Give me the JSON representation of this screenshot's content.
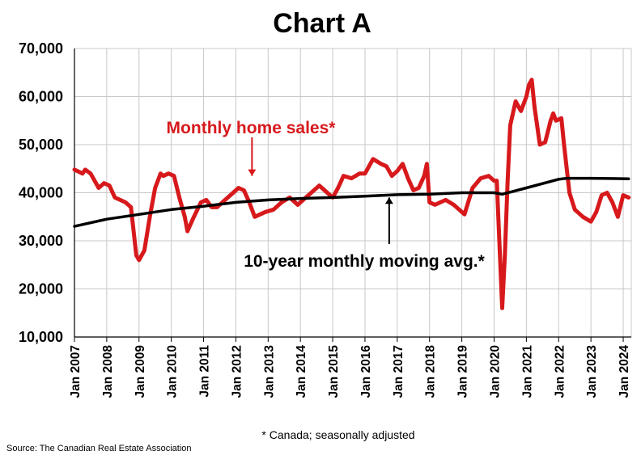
{
  "chart_data": {
    "type": "line",
    "title": "Chart A",
    "xlabel": "",
    "ylabel": "",
    "ylim": [
      10000,
      70000
    ],
    "y_ticks": [
      "10,000",
      "20,000",
      "30,000",
      "40,000",
      "50,000",
      "60,000",
      "70,000"
    ],
    "y_tick_values": [
      10000,
      20000,
      30000,
      40000,
      50000,
      60000,
      70000
    ],
    "x_ticks": [
      "Jan 2007",
      "Jan 2008",
      "Jan 2009",
      "Jan 2010",
      "Jan 2011",
      "Jan 2012",
      "Jan 2013",
      "Jan 2014",
      "Jan 2015",
      "Jan 2016",
      "Jan 2017",
      "Jan 2018",
      "Jan 2019",
      "Jan 2020",
      "Jan 2021",
      "Jan 2022",
      "Jan 2023",
      "Jan 2024"
    ],
    "xlim": [
      "2007-01",
      "2024-04"
    ],
    "grid": "vertical and horizontal",
    "series": [
      {
        "name": "Monthly home sales*",
        "color": "#d7191c",
        "points": [
          [
            "2007-01",
            44800
          ],
          [
            "2007-04",
            44000
          ],
          [
            "2007-05",
            44800
          ],
          [
            "2007-07",
            44000
          ],
          [
            "2007-10",
            41000
          ],
          [
            "2007-12",
            42000
          ],
          [
            "2008-02",
            41500
          ],
          [
            "2008-04",
            39000
          ],
          [
            "2008-08",
            38000
          ],
          [
            "2008-10",
            37000
          ],
          [
            "2008-11",
            32000
          ],
          [
            "2008-12",
            27000
          ],
          [
            "2009-01",
            26000
          ],
          [
            "2009-03",
            28000
          ],
          [
            "2009-05",
            35000
          ],
          [
            "2009-07",
            41000
          ],
          [
            "2009-09",
            44000
          ],
          [
            "2009-10",
            43500
          ],
          [
            "2009-12",
            44000
          ],
          [
            "2010-02",
            43500
          ],
          [
            "2010-04",
            39000
          ],
          [
            "2010-06",
            35000
          ],
          [
            "2010-07",
            32000
          ],
          [
            "2010-09",
            34500
          ],
          [
            "2010-12",
            38000
          ],
          [
            "2011-02",
            38500
          ],
          [
            "2011-04",
            37000
          ],
          [
            "2011-06",
            37000
          ],
          [
            "2011-09",
            38500
          ],
          [
            "2011-12",
            40000
          ],
          [
            "2012-02",
            41000
          ],
          [
            "2012-04",
            40500
          ],
          [
            "2012-06",
            38000
          ],
          [
            "2012-08",
            35000
          ],
          [
            "2012-10",
            35500
          ],
          [
            "2012-12",
            36000
          ],
          [
            "2013-03",
            36500
          ],
          [
            "2013-06",
            38000
          ],
          [
            "2013-09",
            39000
          ],
          [
            "2013-12",
            37500
          ],
          [
            "2014-02",
            38500
          ],
          [
            "2014-05",
            40000
          ],
          [
            "2014-08",
            41500
          ],
          [
            "2014-11",
            40000
          ],
          [
            "2015-01",
            39000
          ],
          [
            "2015-03",
            41000
          ],
          [
            "2015-05",
            43500
          ],
          [
            "2015-08",
            43000
          ],
          [
            "2015-11",
            44000
          ],
          [
            "2016-01",
            44000
          ],
          [
            "2016-04",
            47000
          ],
          [
            "2016-07",
            46000
          ],
          [
            "2016-09",
            45500
          ],
          [
            "2016-11",
            43500
          ],
          [
            "2017-01",
            44500
          ],
          [
            "2017-03",
            46000
          ],
          [
            "2017-05",
            43000
          ],
          [
            "2017-07",
            40500
          ],
          [
            "2017-09",
            41000
          ],
          [
            "2017-11",
            43500
          ],
          [
            "2017-12",
            46000
          ],
          [
            "2018-01",
            38000
          ],
          [
            "2018-03",
            37500
          ],
          [
            "2018-05",
            38000
          ],
          [
            "2018-07",
            38500
          ],
          [
            "2018-10",
            37500
          ],
          [
            "2019-01",
            36000
          ],
          [
            "2019-02",
            35500
          ],
          [
            "2019-05",
            41000
          ],
          [
            "2019-08",
            43000
          ],
          [
            "2019-11",
            43500
          ],
          [
            "2020-01",
            42500
          ],
          [
            "2020-02",
            42500
          ],
          [
            "2020-04",
            16000
          ],
          [
            "2020-05",
            27000
          ],
          [
            "2020-06",
            42000
          ],
          [
            "2020-07",
            54000
          ],
          [
            "2020-09",
            59000
          ],
          [
            "2020-11",
            57000
          ],
          [
            "2021-01",
            60000
          ],
          [
            "2021-02",
            62500
          ],
          [
            "2021-03",
            63500
          ],
          [
            "2021-04",
            58000
          ],
          [
            "2021-06",
            50000
          ],
          [
            "2021-08",
            50500
          ],
          [
            "2021-10",
            55000
          ],
          [
            "2021-11",
            56500
          ],
          [
            "2021-12",
            55000
          ],
          [
            "2022-02",
            55500
          ],
          [
            "2022-03",
            50000
          ],
          [
            "2022-05",
            40000
          ],
          [
            "2022-07",
            36500
          ],
          [
            "2022-10",
            35000
          ],
          [
            "2023-01",
            34000
          ],
          [
            "2023-03",
            36000
          ],
          [
            "2023-05",
            39500
          ],
          [
            "2023-07",
            40000
          ],
          [
            "2023-09",
            38000
          ],
          [
            "2023-11",
            35000
          ],
          [
            "2024-01",
            39500
          ],
          [
            "2024-03",
            39000
          ]
        ]
      },
      {
        "name": "10-year monthly moving avg.*",
        "color": "#000000",
        "points": [
          [
            "2007-01",
            33000
          ],
          [
            "2008-01",
            34500
          ],
          [
            "2009-01",
            35500
          ],
          [
            "2010-01",
            36500
          ],
          [
            "2011-01",
            37200
          ],
          [
            "2012-01",
            38000
          ],
          [
            "2013-01",
            38500
          ],
          [
            "2014-01",
            38800
          ],
          [
            "2015-01",
            39000
          ],
          [
            "2016-01",
            39300
          ],
          [
            "2017-01",
            39600
          ],
          [
            "2018-01",
            39700
          ],
          [
            "2019-01",
            40000
          ],
          [
            "2020-01",
            40000
          ],
          [
            "2020-04",
            39700
          ],
          [
            "2021-01",
            41000
          ],
          [
            "2022-01",
            42800
          ],
          [
            "2022-04",
            43000
          ],
          [
            "2023-01",
            43000
          ],
          [
            "2024-03",
            42900
          ]
        ]
      }
    ],
    "annotations": [
      {
        "text": "Monthly home sales*",
        "color": "#d7191c",
        "points_to": [
          "2012-07",
          43500
        ]
      },
      {
        "text": "10-year monthly moving avg.*",
        "color": "#000000",
        "points_to": [
          "2016-10",
          39700
        ]
      }
    ],
    "footnote": "* Canada; seasonally adjusted",
    "source": "Source: The Canadian Real Estate Association"
  }
}
